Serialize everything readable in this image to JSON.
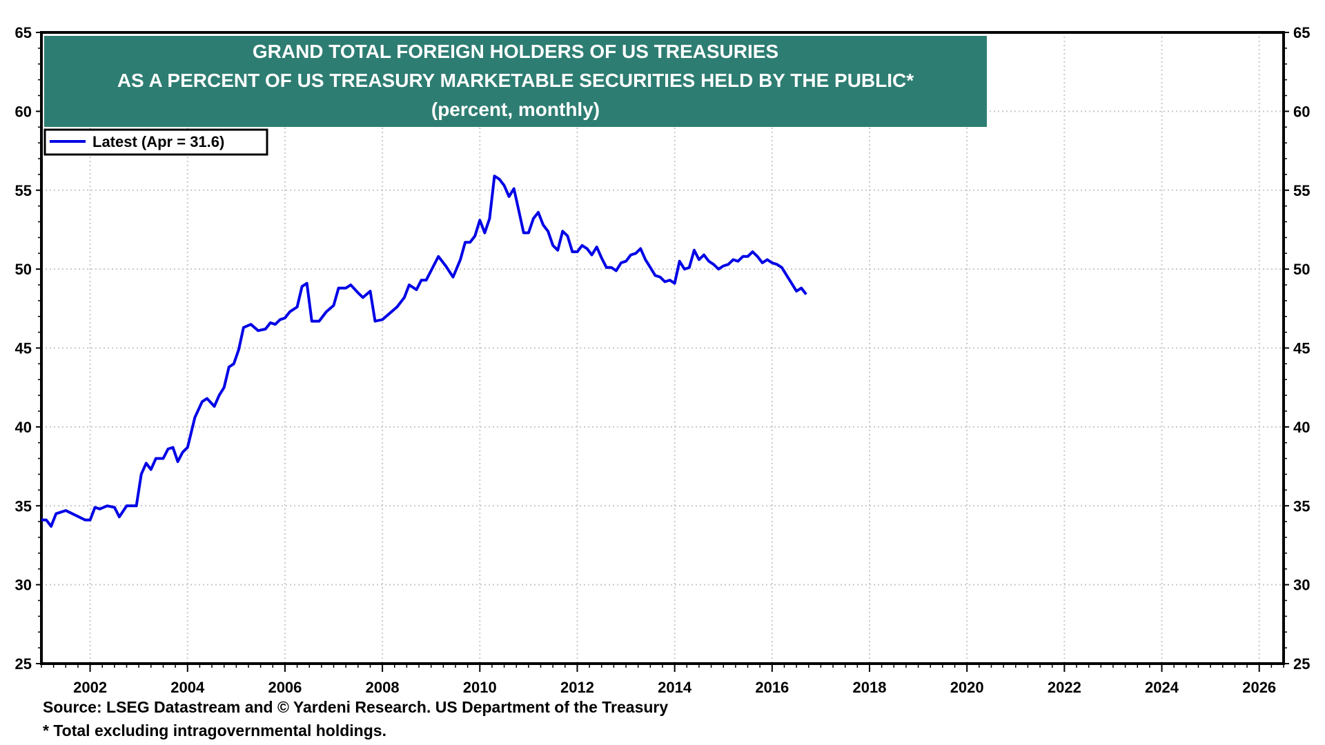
{
  "chart_data": {
    "type": "line",
    "title": "GRAND TOTAL FOREIGN HOLDERS OF US TREASURIES",
    "subtitle": "AS A PERCENT OF US TREASURY MARKETABLE SECURITIES HELD BY THE PUBLIC*",
    "units": "(percent, monthly)",
    "xlabel": "",
    "ylabel": "",
    "xlim": [
      2001.0,
      2026.5
    ],
    "ylim": [
      25,
      65
    ],
    "x_ticks": [
      "2002",
      "2004",
      "2006",
      "2008",
      "2010",
      "2012",
      "2014",
      "2016",
      "2018",
      "2020",
      "2022",
      "2024",
      "2026"
    ],
    "y_ticks": [
      "25",
      "30",
      "35",
      "40",
      "45",
      "50",
      "55",
      "60",
      "65"
    ],
    "grid": true,
    "legend": {
      "placement": "top-left",
      "entries": [
        "Latest (Apr = 31.6)"
      ]
    },
    "series": [
      {
        "name": "Latest (Apr = 31.6)",
        "color": "#0000E6",
        "points": [
          [
            2001.0,
            34.1
          ],
          [
            2001.1,
            34.1
          ],
          [
            2001.2,
            33.7
          ],
          [
            2001.3,
            34.5
          ],
          [
            2001.5,
            34.7
          ],
          [
            2001.9,
            34.1
          ],
          [
            2002.0,
            34.1
          ],
          [
            2002.1,
            34.9
          ],
          [
            2002.2,
            34.8
          ],
          [
            2002.35,
            35.0
          ],
          [
            2002.5,
            34.9
          ],
          [
            2002.6,
            34.3
          ],
          [
            2002.75,
            35.0
          ],
          [
            2002.95,
            35.0
          ],
          [
            2003.05,
            37.0
          ],
          [
            2003.15,
            37.7
          ],
          [
            2003.25,
            37.3
          ],
          [
            2003.35,
            38.0
          ],
          [
            2003.5,
            38.0
          ],
          [
            2003.6,
            38.6
          ],
          [
            2003.7,
            38.7
          ],
          [
            2003.8,
            37.8
          ],
          [
            2003.9,
            38.4
          ],
          [
            2004.0,
            38.7
          ],
          [
            2004.15,
            40.6
          ],
          [
            2004.3,
            41.6
          ],
          [
            2004.4,
            41.8
          ],
          [
            2004.55,
            41.3
          ],
          [
            2004.65,
            42.0
          ],
          [
            2004.75,
            42.5
          ],
          [
            2004.85,
            43.8
          ],
          [
            2004.95,
            44.0
          ],
          [
            2005.05,
            44.9
          ],
          [
            2005.15,
            46.3
          ],
          [
            2005.3,
            46.5
          ],
          [
            2005.45,
            46.1
          ],
          [
            2005.6,
            46.2
          ],
          [
            2005.7,
            46.6
          ],
          [
            2005.8,
            46.5
          ],
          [
            2005.9,
            46.8
          ],
          [
            2006.0,
            46.9
          ],
          [
            2006.1,
            47.3
          ],
          [
            2006.25,
            47.6
          ],
          [
            2006.35,
            48.9
          ],
          [
            2006.45,
            49.1
          ],
          [
            2006.55,
            46.7
          ],
          [
            2006.7,
            46.7
          ],
          [
            2006.85,
            47.3
          ],
          [
            2007.0,
            47.7
          ],
          [
            2007.1,
            48.8
          ],
          [
            2007.25,
            48.8
          ],
          [
            2007.35,
            49.0
          ],
          [
            2007.5,
            48.5
          ],
          [
            2007.6,
            48.2
          ],
          [
            2007.75,
            48.6
          ],
          [
            2007.85,
            46.7
          ],
          [
            2008.0,
            46.8
          ],
          [
            2008.15,
            47.2
          ],
          [
            2008.3,
            47.6
          ],
          [
            2008.45,
            48.2
          ],
          [
            2008.55,
            49.0
          ],
          [
            2008.7,
            48.7
          ],
          [
            2008.8,
            49.3
          ],
          [
            2008.9,
            49.3
          ],
          [
            2009.05,
            50.2
          ],
          [
            2009.15,
            50.8
          ],
          [
            2009.3,
            50.2
          ],
          [
            2009.45,
            49.5
          ],
          [
            2009.6,
            50.6
          ],
          [
            2009.7,
            51.7
          ],
          [
            2009.8,
            51.7
          ],
          [
            2009.9,
            52.1
          ],
          [
            2010.0,
            53.1
          ],
          [
            2010.1,
            52.3
          ],
          [
            2010.2,
            53.2
          ],
          [
            2010.3,
            55.9
          ],
          [
            2010.4,
            55.7
          ],
          [
            2010.5,
            55.3
          ],
          [
            2010.6,
            54.6
          ],
          [
            2010.7,
            55.1
          ],
          [
            2010.8,
            53.7
          ],
          [
            2010.9,
            52.3
          ],
          [
            2011.0,
            52.3
          ],
          [
            2011.1,
            53.2
          ],
          [
            2011.2,
            53.6
          ],
          [
            2011.3,
            52.8
          ],
          [
            2011.4,
            52.4
          ],
          [
            2011.5,
            51.5
          ],
          [
            2011.6,
            51.2
          ],
          [
            2011.7,
            52.4
          ],
          [
            2011.8,
            52.1
          ],
          [
            2011.9,
            51.1
          ],
          [
            2012.0,
            51.1
          ],
          [
            2012.1,
            51.5
          ],
          [
            2012.2,
            51.3
          ],
          [
            2012.3,
            50.9
          ],
          [
            2012.4,
            51.4
          ],
          [
            2012.5,
            50.7
          ],
          [
            2012.6,
            50.1
          ],
          [
            2012.7,
            50.1
          ],
          [
            2012.8,
            49.9
          ],
          [
            2012.9,
            50.4
          ],
          [
            2013.0,
            50.5
          ],
          [
            2013.1,
            50.9
          ],
          [
            2013.2,
            51.0
          ],
          [
            2013.3,
            51.3
          ],
          [
            2013.4,
            50.6
          ],
          [
            2013.5,
            50.1
          ],
          [
            2013.6,
            49.6
          ],
          [
            2013.7,
            49.5
          ],
          [
            2013.8,
            49.2
          ],
          [
            2013.9,
            49.3
          ],
          [
            2014.0,
            49.1
          ],
          [
            2014.1,
            50.5
          ],
          [
            2014.2,
            50.0
          ],
          [
            2014.3,
            50.1
          ],
          [
            2014.4,
            51.2
          ],
          [
            2014.5,
            50.6
          ],
          [
            2014.6,
            50.9
          ],
          [
            2014.7,
            50.5
          ],
          [
            2014.8,
            50.3
          ],
          [
            2014.9,
            50.0
          ],
          [
            2015.0,
            50.2
          ],
          [
            2015.1,
            50.3
          ],
          [
            2015.2,
            50.6
          ],
          [
            2015.3,
            50.5
          ],
          [
            2015.4,
            50.8
          ],
          [
            2015.5,
            50.8
          ],
          [
            2015.6,
            51.1
          ],
          [
            2015.7,
            50.8
          ],
          [
            2015.8,
            50.4
          ],
          [
            2015.9,
            50.6
          ],
          [
            2016.0,
            50.4
          ],
          [
            2016.1,
            50.3
          ],
          [
            2016.2,
            50.1
          ],
          [
            2016.3,
            49.6
          ],
          [
            2016.4,
            49.1
          ],
          [
            2016.5,
            48.6
          ],
          [
            2016.6,
            48.8
          ],
          [
            2016.7,
            48.4
          ]
        ]
      }
    ]
  },
  "footer": {
    "source": "Source: LSEG Datastream and © Yardeni Research. US Department of the Treasury",
    "note": "* Total excluding intragovernmental holdings."
  }
}
